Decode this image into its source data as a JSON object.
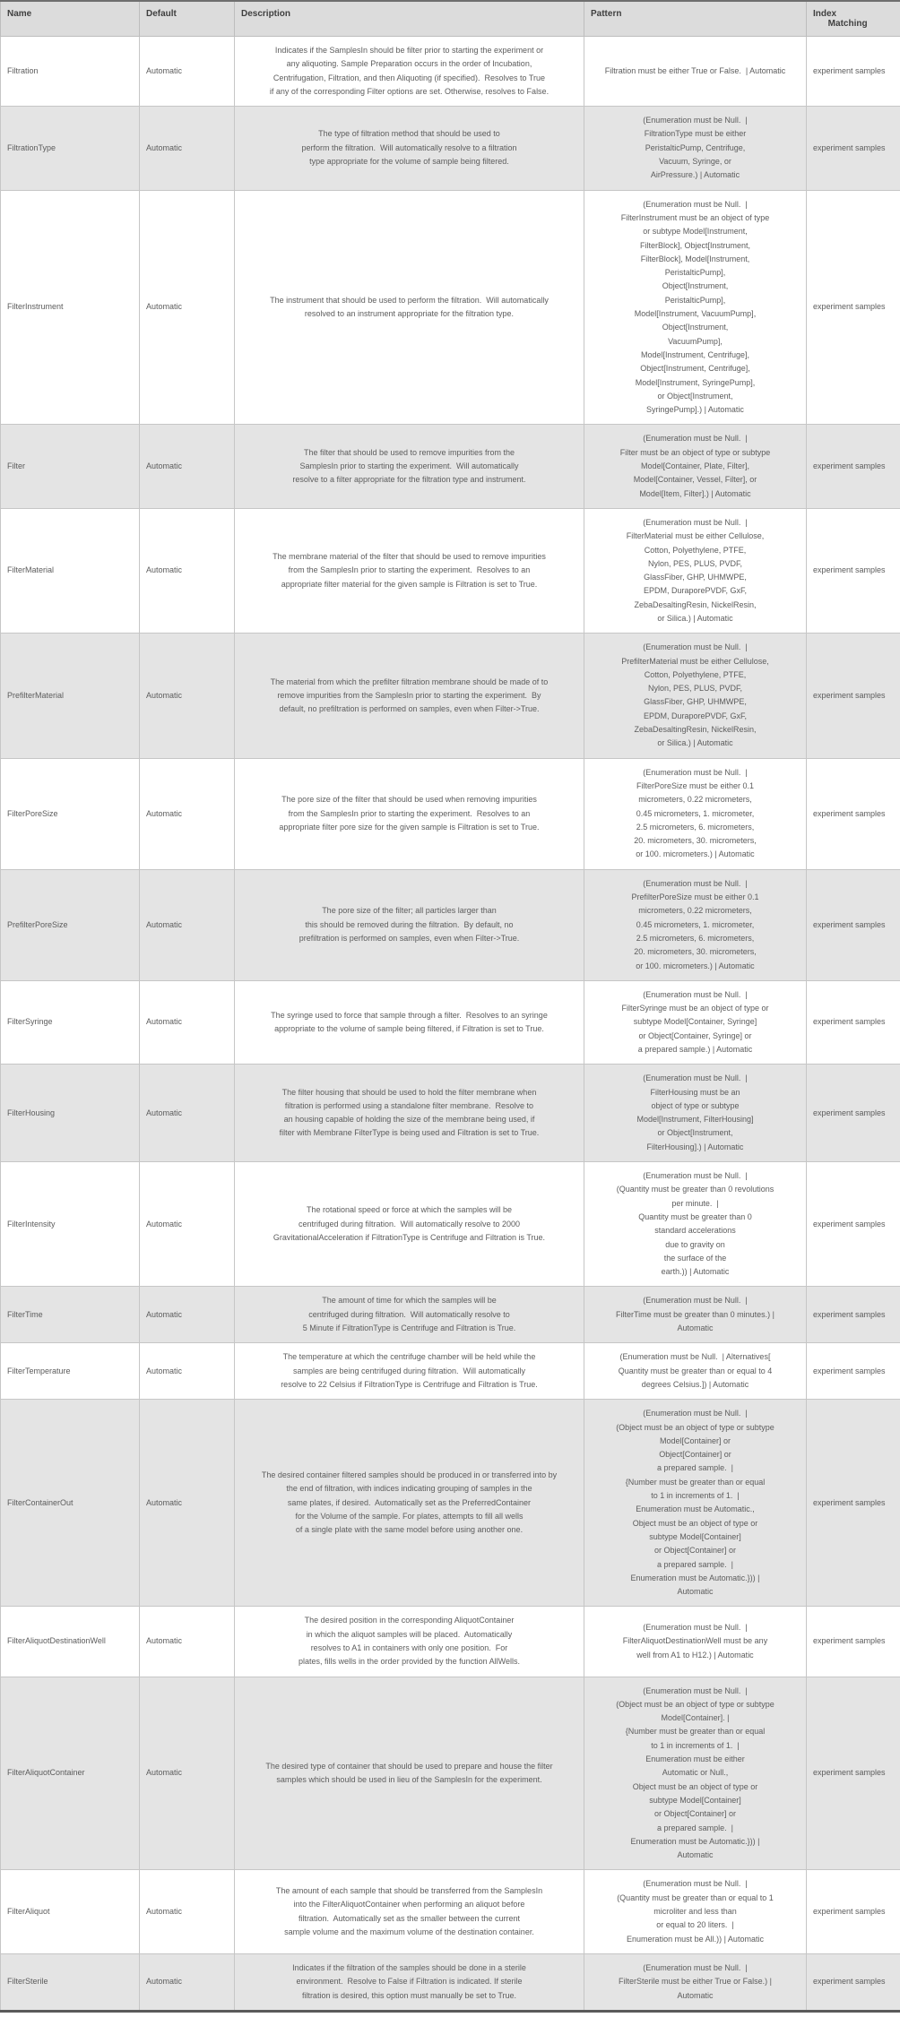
{
  "colors": {
    "header_bg": "#dcdcdc",
    "row_bg": "#ffffff",
    "row_alt_bg": "#e4e4e4",
    "border": "#c6c6c6",
    "outer_border": "#6f6f6f",
    "text": "#5c5c5c",
    "header_text": "#3f3f3f"
  },
  "table": {
    "columns": [
      {
        "key": "name",
        "label": "Name"
      },
      {
        "key": "default",
        "label": "Default"
      },
      {
        "key": "description",
        "label": "Description"
      },
      {
        "key": "pattern",
        "label": "Pattern"
      },
      {
        "key": "index_matching",
        "label": "Index\n      Matching"
      }
    ],
    "rows": [
      {
        "name": "Filtration",
        "default": "Automatic",
        "description": "Indicates if the SamplesIn should be filter prior to starting the experiment or\nany aliquoting. Sample Preparation occurs in the order of Incubation,\nCentrifugation, Filtration, and then Aliquoting (if specified).  Resolves to True\nif any of the corresponding Filter options are set. Otherwise, resolves to False.",
        "pattern": "Filtration must be either True or False.  | Automatic",
        "index_matching": "experiment samples"
      },
      {
        "name": "FiltrationType",
        "default": "Automatic",
        "description": "The type of filtration method that should be used to\nperform the filtration.  Will automatically resolve to a filtration\ntype appropriate for the volume of sample being filtered.",
        "pattern": "(Enumeration must be Null.  |\nFiltrationType must be either\nPeristalticPump, Centrifuge,\nVacuum, Syringe, or\nAirPressure.) | Automatic",
        "index_matching": "experiment samples"
      },
      {
        "name": "FilterInstrument",
        "default": "Automatic",
        "description": "The instrument that should be used to perform the filtration.  Will automatically\nresolved to an instrument appropriate for the filtration type.",
        "pattern": "(Enumeration must be Null.  |\nFilterInstrument must be an object of type\nor subtype Model[Instrument,\nFilterBlock], Object[Instrument,\nFilterBlock], Model[Instrument,\nPeristalticPump],\nObject[Instrument,\nPeristalticPump],\nModel[Instrument, VacuumPump],\nObject[Instrument,\nVacuumPump],\nModel[Instrument, Centrifuge],\nObject[Instrument, Centrifuge],\nModel[Instrument, SyringePump],\nor Object[Instrument,\nSyringePump].) | Automatic",
        "index_matching": "experiment samples"
      },
      {
        "name": "Filter",
        "default": "Automatic",
        "description": "The filter that should be used to remove impurities from the\nSamplesIn prior to starting the experiment.  Will automatically\nresolve to a filter appropriate for the filtration type and instrument.",
        "pattern": "(Enumeration must be Null.  |\nFilter must be an object of type or subtype\nModel[Container, Plate, Filter],\nModel[Container, Vessel, Filter], or\nModel[Item, Filter].) | Automatic",
        "index_matching": "experiment samples"
      },
      {
        "name": "FilterMaterial",
        "default": "Automatic",
        "description": "The membrane material of the filter that should be used to remove impurities\nfrom the SamplesIn prior to starting the experiment.  Resolves to an\nappropriate filter material for the given sample is Filtration is set to True.",
        "pattern": "(Enumeration must be Null.  |\nFilterMaterial must be either Cellulose,\nCotton, Polyethylene, PTFE,\nNylon, PES, PLUS, PVDF,\nGlassFiber, GHP, UHMWPE,\nEPDM, DuraporePVDF, GxF,\nZebaDesaltingResin, NickelResin,\nor Silica.) | Automatic",
        "index_matching": "experiment samples"
      },
      {
        "name": "PrefilterMaterial",
        "default": "Automatic",
        "description": "The material from which the prefilter filtration membrane should be made of to\nremove impurities from the SamplesIn prior to starting the experiment.  By\ndefault, no prefiltration is performed on samples, even when Filter->True.",
        "pattern": "(Enumeration must be Null.  |\nPrefilterMaterial must be either Cellulose,\nCotton, Polyethylene, PTFE,\nNylon, PES, PLUS, PVDF,\nGlassFiber, GHP, UHMWPE,\nEPDM, DuraporePVDF, GxF,\nZebaDesaltingResin, NickelResin,\nor Silica.) | Automatic",
        "index_matching": "experiment samples"
      },
      {
        "name": "FilterPoreSize",
        "default": "Automatic",
        "description": "The pore size of the filter that should be used when removing impurities\nfrom the SamplesIn prior to starting the experiment.  Resolves to an\nappropriate filter pore size for the given sample is Filtration is set to True.",
        "pattern": "(Enumeration must be Null.  |\nFilterPoreSize must be either 0.1\nmicrometers, 0.22 micrometers,\n0.45 micrometers, 1. micrometer,\n2.5 micrometers, 6. micrometers,\n20. micrometers, 30. micrometers,\nor 100. micrometers.) | Automatic",
        "index_matching": "experiment samples"
      },
      {
        "name": "PrefilterPoreSize",
        "default": "Automatic",
        "description": "The pore size of the filter; all particles larger than\nthis should be removed during the filtration.  By default, no\nprefiltration is performed on samples, even when Filter->True.",
        "pattern": "(Enumeration must be Null.  |\nPrefilterPoreSize must be either 0.1\nmicrometers, 0.22 micrometers,\n0.45 micrometers, 1. micrometer,\n2.5 micrometers, 6. micrometers,\n20. micrometers, 30. micrometers,\nor 100. micrometers.) | Automatic",
        "index_matching": "experiment samples"
      },
      {
        "name": "FilterSyringe",
        "default": "Automatic",
        "description": "The syringe used to force that sample through a filter.  Resolves to an syringe\nappropriate to the volume of sample being filtered, if Filtration is set to True.",
        "pattern": "(Enumeration must be Null.  |\nFilterSyringe must be an object of type or\nsubtype Model[Container, Syringe]\nor Object[Container, Syringe] or\na prepared sample.) | Automatic",
        "index_matching": "experiment samples"
      },
      {
        "name": "FilterHousing",
        "default": "Automatic",
        "description": "The filter housing that should be used to hold the filter membrane when\nfiltration is performed using a standalone filter membrane.  Resolve to\nan housing capable of holding the size of the membrane being used, if\nfilter with Membrane FilterType is being used and Filtration is set to True.",
        "pattern": "(Enumeration must be Null.  |\nFilterHousing must be an\nobject of type or subtype\nModel[Instrument, FilterHousing]\nor Object[Instrument,\nFilterHousing].) | Automatic",
        "index_matching": "experiment samples"
      },
      {
        "name": "FilterIntensity",
        "default": "Automatic",
        "description": "The rotational speed or force at which the samples will be\ncentrifuged during filtration.  Will automatically resolve to 2000\nGravitationalAcceleration if FiltrationType is Centrifuge and Filtration is True.",
        "pattern": "(Enumeration must be Null.  |\n(Quantity must be greater than 0 revolutions\nper minute.  |\nQuantity must be greater than 0\nstandard accelerations\ndue to gravity on\nthe surface of the\nearth.)) | Automatic",
        "index_matching": "experiment samples"
      },
      {
        "name": "FilterTime",
        "default": "Automatic",
        "description": "The amount of time for which the samples will be\ncentrifuged during filtration.  Will automatically resolve to\n5 Minute if FiltrationType is Centrifuge and Filtration is True.",
        "pattern": "(Enumeration must be Null.  |\nFilterTime must be greater than 0 minutes.) |\nAutomatic",
        "index_matching": "experiment samples"
      },
      {
        "name": "FilterTemperature",
        "default": "Automatic",
        "description": "The temperature at which the centrifuge chamber will be held while the\nsamples are being centrifuged during filtration.  Will automatically\nresolve to 22 Celsius if FiltrationType is Centrifuge and Filtration is True.",
        "pattern": "(Enumeration must be Null.  | Alternatives[\nQuantity must be greater than or equal to 4\ndegrees Celsius.]) | Automatic",
        "index_matching": "experiment samples"
      },
      {
        "name": "FilterContainerOut",
        "default": "Automatic",
        "description": "The desired container filtered samples should be produced in or transferred into by\nthe end of filtration, with indices indicating grouping of samples in the\nsame plates, if desired.  Automatically set as the PreferredContainer\nfor the Volume of the sample. For plates, attempts to fill all wells\nof a single plate with the same model before using another one.",
        "pattern": "(Enumeration must be Null.  |\n(Object must be an object of type or subtype\nModel[Container] or\nObject[Container] or\na prepared sample.  |\n{Number must be greater than or equal\nto 1 in increments of 1.  |\nEnumeration must be Automatic.,\nObject must be an object of type or\nsubtype Model[Container]\nor Object[Container] or\na prepared sample.  |\nEnumeration must be Automatic.})) |\nAutomatic",
        "index_matching": "experiment samples"
      },
      {
        "name": "FilterAliquotDestinationWell",
        "default": "Automatic",
        "description": "The desired position in the corresponding AliquotContainer\nin which the aliquot samples will be placed.  Automatically\nresolves to A1 in containers with only one position.  For\nplates, fills wells in the order provided by the function AllWells.",
        "pattern": "(Enumeration must be Null.  |\nFilterAliquotDestinationWell must be any\nwell from A1 to H12.) | Automatic",
        "index_matching": "experiment samples"
      },
      {
        "name": "FilterAliquotContainer",
        "default": "Automatic",
        "description": "The desired type of container that should be used to prepare and house the filter\nsamples which should be used in lieu of the SamplesIn for the experiment.",
        "pattern": "(Enumeration must be Null.  |\n(Object must be an object of type or subtype\nModel[Container]. |\n{Number must be greater than or equal\nto 1 in increments of 1.  |\nEnumeration must be either\nAutomatic or Null.,\nObject must be an object of type or\nsubtype Model[Container]\nor Object[Container] or\na prepared sample.  |\nEnumeration must be Automatic.})) |\nAutomatic",
        "index_matching": "experiment samples"
      },
      {
        "name": "FilterAliquot",
        "default": "Automatic",
        "description": "The amount of each sample that should be transferred from the SamplesIn\ninto the FilterAliquotContainer when performing an aliquot before\nfiltration.  Automatically set as the smaller between the current\nsample volume and the maximum volume of the destination container.",
        "pattern": "(Enumeration must be Null.  |\n(Quantity must be greater than or equal to 1\nmicroliter and less than\nor equal to 20 liters.  |\nEnumeration must be All.)) | Automatic",
        "index_matching": "experiment samples"
      },
      {
        "name": "FilterSterile",
        "default": "Automatic",
        "description": "Indicates if the filtration of the samples should be done in a sterile\nenvironment.  Resolve to False if Filtration is indicated. If sterile\nfiltration is desired, this option must manually be set to True.",
        "pattern": "(Enumeration must be Null.  |\nFilterSterile must be either True or False.) |\nAutomatic",
        "index_matching": "experiment samples"
      }
    ]
  }
}
